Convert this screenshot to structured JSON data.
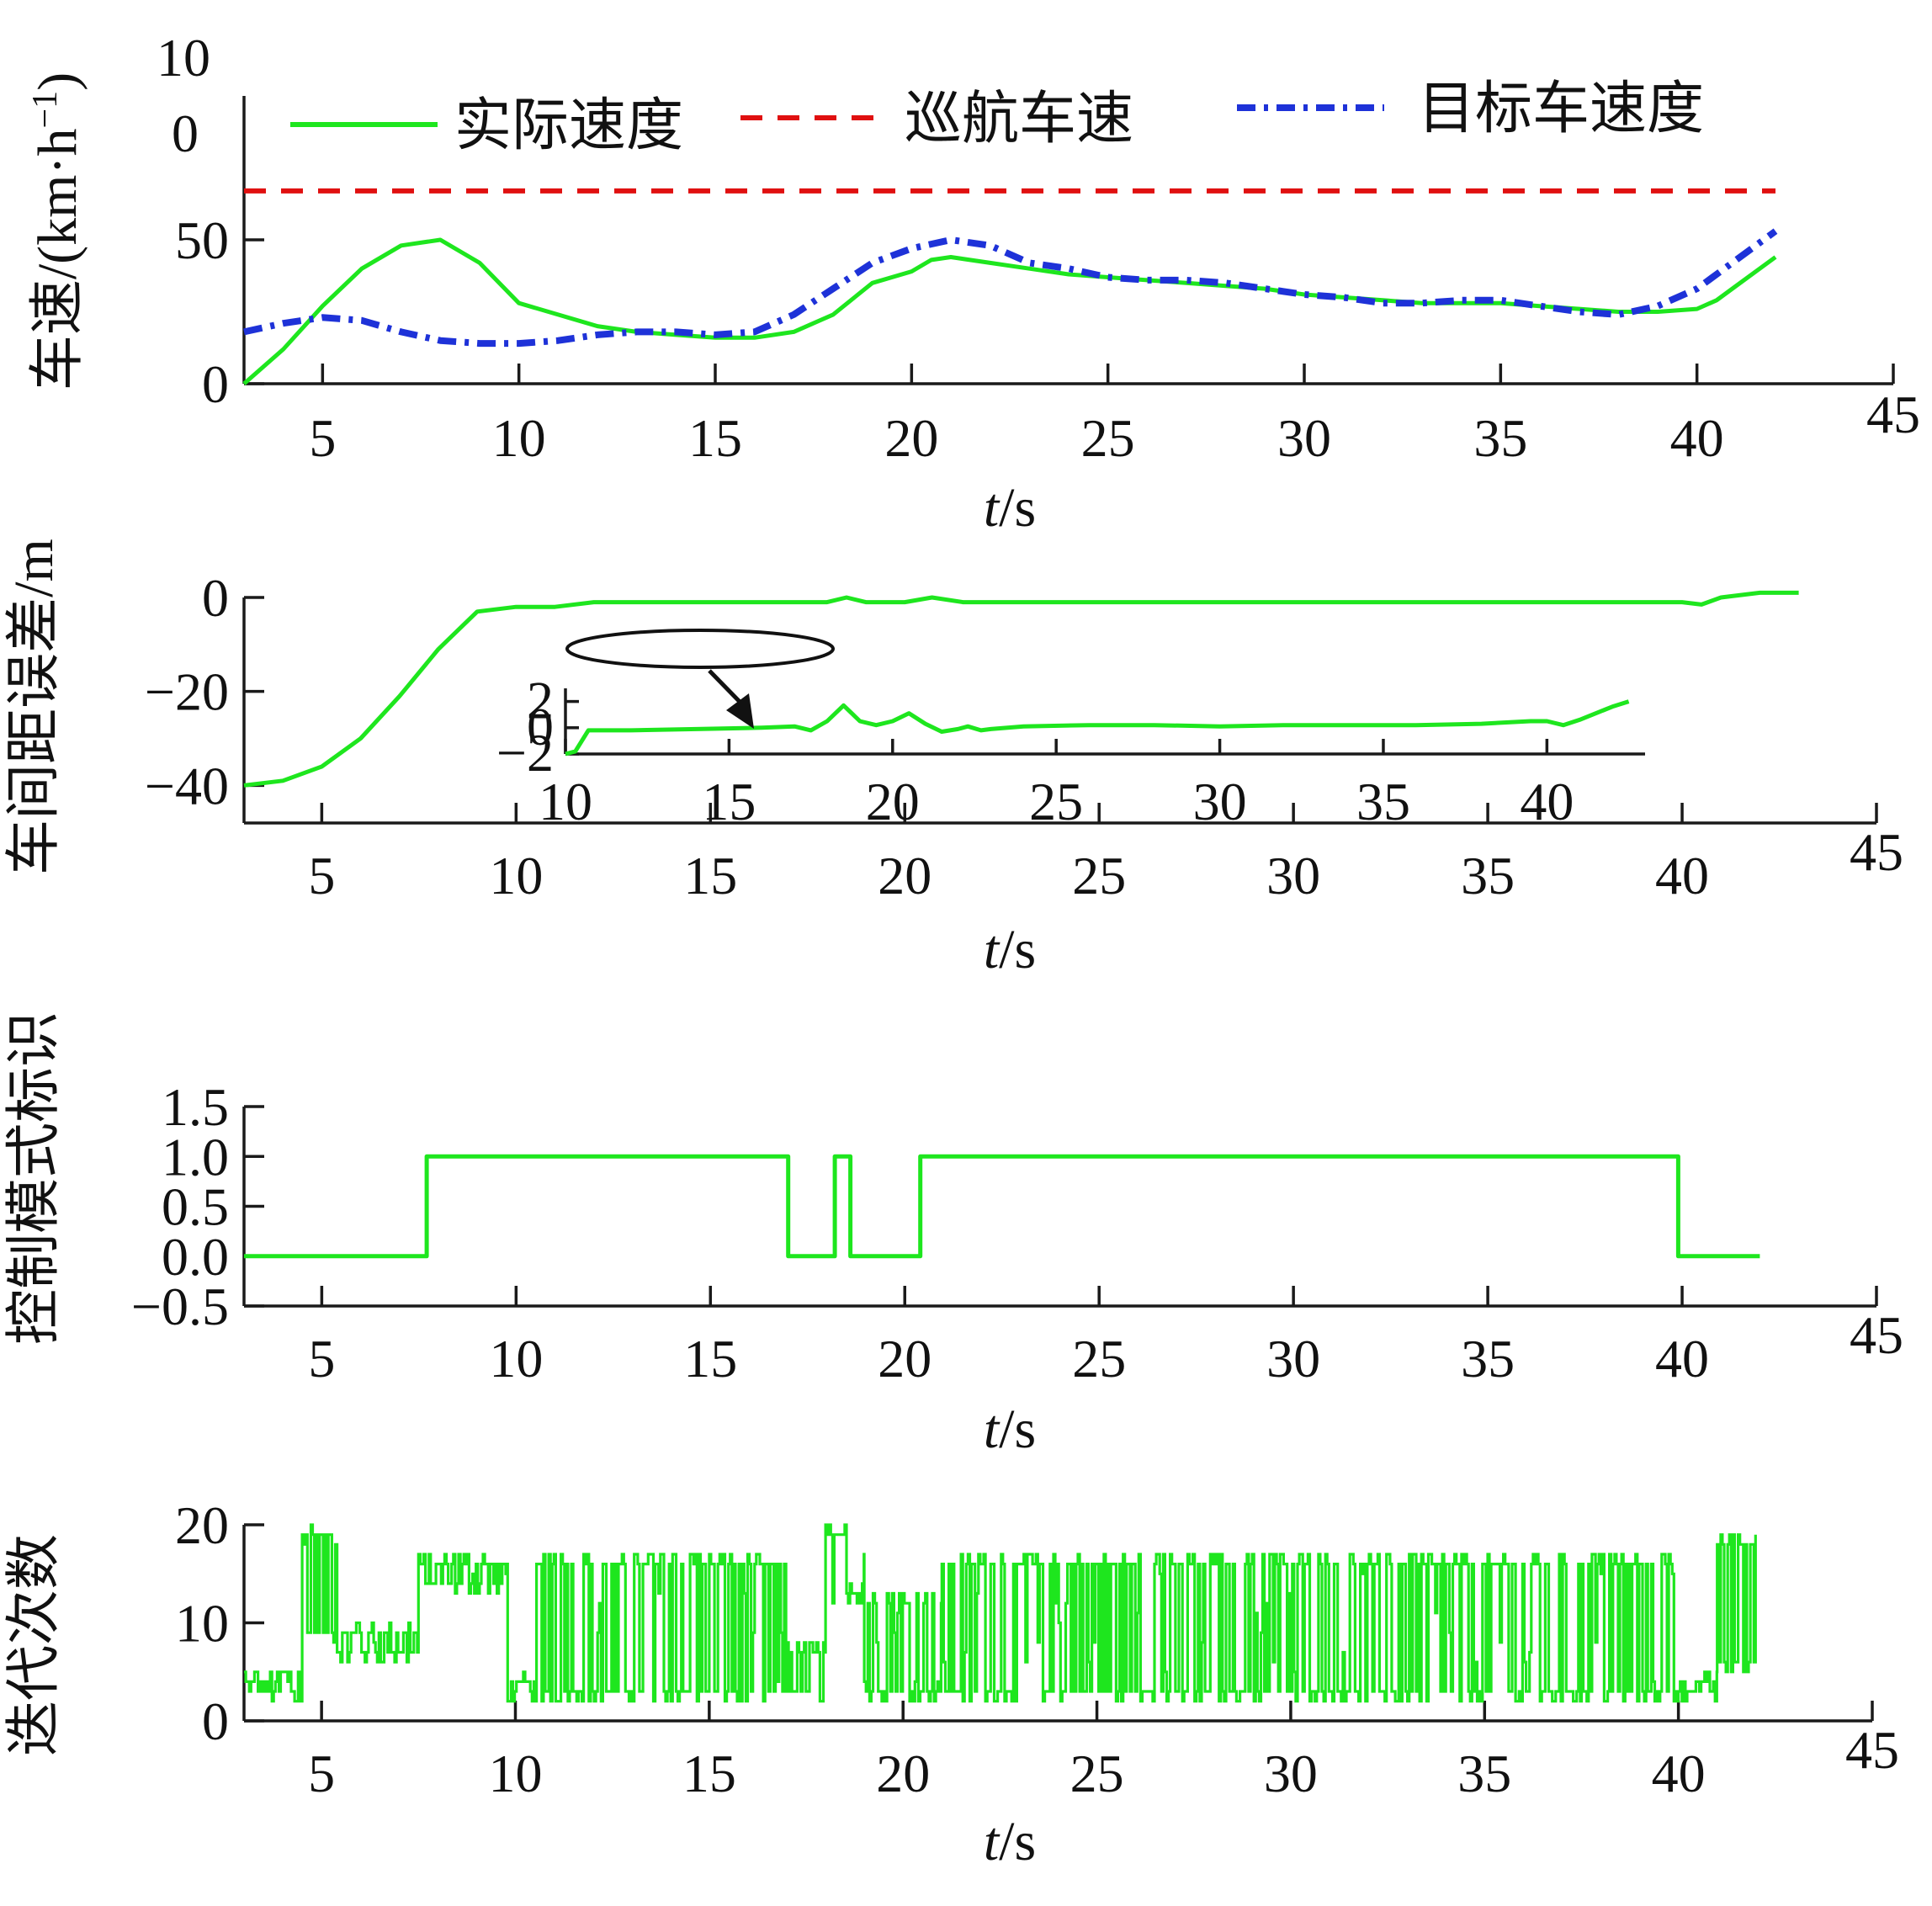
{
  "colors": {
    "actual": "#1ee61e",
    "cruise": "#e01010",
    "target": "#1e32d8",
    "axis": "#1a1a1a"
  },
  "chart_data": [
    {
      "id": "speed",
      "type": "line",
      "xlabel_italic": "t",
      "xlabel_unit": "/s",
      "ylabel": "车速/(km·h",
      "ylabel_sup": "−1",
      "ylabel_tail": ")",
      "xlim": [
        3,
        45
      ],
      "ylim": [
        0,
        100
      ],
      "xticks": [
        5,
        10,
        15,
        20,
        25,
        30,
        35,
        40,
        45
      ],
      "yticks": [
        {
          "v": 0,
          "label": "0"
        },
        {
          "v": 50,
          "label": "50"
        }
      ],
      "ytick_top_label_a": "10",
      "ytick_top_label_b": "0",
      "legend": [
        {
          "label": "实际速度",
          "style": "solid",
          "color": "#1ee61e"
        },
        {
          "label": "巡航车速",
          "style": "dashed",
          "color": "#e01010"
        },
        {
          "label": "目标车速度",
          "style": "dashdot",
          "color": "#1e32d8"
        }
      ],
      "series": [
        {
          "name": "实际速度",
          "style": "solid",
          "color": "#1ee61e",
          "points": [
            [
              3,
              0
            ],
            [
              4,
              12
            ],
            [
              5,
              27
            ],
            [
              6,
              40
            ],
            [
              7,
              48
            ],
            [
              8,
              50
            ],
            [
              9,
              42
            ],
            [
              10,
              28
            ],
            [
              11,
              24
            ],
            [
              12,
              20
            ],
            [
              13,
              18
            ],
            [
              14,
              17
            ],
            [
              15,
              16
            ],
            [
              16,
              16
            ],
            [
              17,
              18
            ],
            [
              18,
              24
            ],
            [
              19,
              35
            ],
            [
              20,
              39
            ],
            [
              20.5,
              43
            ],
            [
              21,
              44
            ],
            [
              22,
              42
            ],
            [
              23,
              40
            ],
            [
              24,
              38
            ],
            [
              25,
              37
            ],
            [
              26,
              36
            ],
            [
              27,
              35
            ],
            [
              28,
              34
            ],
            [
              29,
              33
            ],
            [
              30,
              31
            ],
            [
              31,
              30
            ],
            [
              32,
              29
            ],
            [
              33,
              28
            ],
            [
              34,
              28
            ],
            [
              35,
              28
            ],
            [
              36,
              27
            ],
            [
              37,
              26
            ],
            [
              38,
              25
            ],
            [
              39,
              25
            ],
            [
              40,
              26
            ],
            [
              40.5,
              29
            ],
            [
              41,
              34
            ],
            [
              42,
              44
            ]
          ]
        },
        {
          "name": "巡航车速",
          "style": "dashed",
          "color": "#e01010",
          "points": [
            [
              3,
              67
            ],
            [
              42,
              67
            ]
          ]
        },
        {
          "name": "目标车速度",
          "style": "dashdot",
          "color": "#1e32d8",
          "points": [
            [
              3,
              18
            ],
            [
              4,
              21
            ],
            [
              5,
              23
            ],
            [
              6,
              22
            ],
            [
              7,
              18
            ],
            [
              8,
              15
            ],
            [
              9,
              14
            ],
            [
              10,
              14
            ],
            [
              11,
              15
            ],
            [
              12,
              17
            ],
            [
              13,
              18
            ],
            [
              14,
              18
            ],
            [
              15,
              17
            ],
            [
              16,
              18
            ],
            [
              17,
              24
            ],
            [
              18,
              33
            ],
            [
              19,
              42
            ],
            [
              20,
              47
            ],
            [
              21,
              50
            ],
            [
              22,
              48
            ],
            [
              23,
              42
            ],
            [
              24,
              40
            ],
            [
              25,
              37
            ],
            [
              26,
              36
            ],
            [
              27,
              36
            ],
            [
              28,
              35
            ],
            [
              29,
              33
            ],
            [
              30,
              31
            ],
            [
              31,
              30
            ],
            [
              32,
              28
            ],
            [
              33,
              28
            ],
            [
              34,
              29
            ],
            [
              35,
              29
            ],
            [
              36,
              27
            ],
            [
              37,
              25
            ],
            [
              38,
              24
            ],
            [
              39,
              27
            ],
            [
              40,
              33
            ],
            [
              41,
              43
            ],
            [
              42,
              53
            ]
          ]
        }
      ]
    },
    {
      "id": "gap_error",
      "type": "line",
      "xlabel_italic": "t",
      "xlabel_unit": "/s",
      "ylabel": "车间距误差/m",
      "xlim": [
        3,
        45
      ],
      "ylim": [
        -48,
        0
      ],
      "xticks": [
        5,
        10,
        15,
        20,
        25,
        30,
        35,
        40,
        45
      ],
      "yticks": [
        {
          "v": 0,
          "label": "0"
        },
        {
          "v": -20,
          "label": "−20"
        },
        {
          "v": -40,
          "label": "−40"
        }
      ],
      "series": [
        {
          "name": "",
          "style": "solid",
          "color": "#1ee61e",
          "points": [
            [
              3,
              -40
            ],
            [
              4,
              -39
            ],
            [
              5,
              -36
            ],
            [
              6,
              -30
            ],
            [
              7,
              -21
            ],
            [
              8,
              -11
            ],
            [
              9,
              -3
            ],
            [
              10,
              -2
            ],
            [
              11,
              -2
            ],
            [
              12,
              -1
            ],
            [
              13,
              -1
            ],
            [
              14,
              -1
            ],
            [
              15,
              -1
            ],
            [
              16,
              -1
            ],
            [
              17,
              -1
            ],
            [
              18,
              -1
            ],
            [
              18.5,
              0
            ],
            [
              19,
              -1
            ],
            [
              20,
              -1
            ],
            [
              20.7,
              0
            ],
            [
              21.5,
              -1
            ],
            [
              22,
              -1
            ],
            [
              25,
              -1
            ],
            [
              30,
              -1
            ],
            [
              35,
              -1
            ],
            [
              40,
              -1
            ],
            [
              40.5,
              -1.5
            ],
            [
              41,
              0
            ],
            [
              42,
              1
            ],
            [
              43,
              1
            ]
          ]
        }
      ],
      "inset": {
        "xlim": [
          10,
          43
        ],
        "ylim": [
          -2,
          3
        ],
        "xticks": [
          10,
          15,
          20,
          25,
          30,
          35,
          40
        ],
        "yticks": [
          {
            "v": 2,
            "label": "2"
          },
          {
            "v": 0,
            "label": "0"
          },
          {
            "v": -2,
            "label": "−2"
          }
        ],
        "points": [
          [
            10,
            -2
          ],
          [
            10.3,
            -1.8
          ],
          [
            10.7,
            -0.2
          ],
          [
            12,
            -0.2
          ],
          [
            14,
            -0.1
          ],
          [
            16,
            0
          ],
          [
            17,
            0.1
          ],
          [
            17.5,
            -0.2
          ],
          [
            18,
            0.5
          ],
          [
            18.5,
            1.7
          ],
          [
            19,
            0.5
          ],
          [
            19.5,
            0.2
          ],
          [
            20,
            0.5
          ],
          [
            20.5,
            1.1
          ],
          [
            21,
            0.3
          ],
          [
            21.5,
            -0.3
          ],
          [
            22,
            -0.1
          ],
          [
            22.3,
            0.1
          ],
          [
            22.7,
            -0.2
          ],
          [
            23,
            -0.1
          ],
          [
            24,
            0.1
          ],
          [
            26,
            0.2
          ],
          [
            28,
            0.2
          ],
          [
            30,
            0.1
          ],
          [
            32,
            0.2
          ],
          [
            34,
            0.2
          ],
          [
            36,
            0.2
          ],
          [
            38,
            0.3
          ],
          [
            39.5,
            0.5
          ],
          [
            40,
            0.5
          ],
          [
            40.5,
            0.2
          ],
          [
            41,
            0.6
          ],
          [
            42,
            1.6
          ],
          [
            42.5,
            2
          ]
        ]
      }
    },
    {
      "id": "mode_flag",
      "type": "line",
      "xlabel_italic": "t",
      "xlabel_unit": "/s",
      "ylabel": "控制模式标识",
      "xlim": [
        3,
        45
      ],
      "ylim": [
        -0.5,
        1.5
      ],
      "xticks": [
        5,
        10,
        15,
        20,
        25,
        30,
        35,
        40,
        45
      ],
      "yticks": [
        {
          "v": 1.5,
          "label": "1.5"
        },
        {
          "v": 1.0,
          "label": "1.0"
        },
        {
          "v": 0.5,
          "label": "0.5"
        },
        {
          "v": 0.0,
          "label": "0.0"
        },
        {
          "v": -0.5,
          "label": "−0.5"
        }
      ],
      "series": [
        {
          "name": "",
          "style": "solid",
          "color": "#1ee61e",
          "points": [
            [
              3,
              0
            ],
            [
              7.7,
              0
            ],
            [
              7.7,
              1
            ],
            [
              17,
              1
            ],
            [
              17,
              0
            ],
            [
              18.2,
              0
            ],
            [
              18.2,
              1
            ],
            [
              18.6,
              1
            ],
            [
              18.6,
              0
            ],
            [
              20.4,
              0
            ],
            [
              20.4,
              1
            ],
            [
              39.9,
              1
            ],
            [
              39.9,
              0
            ],
            [
              42,
              0
            ]
          ]
        }
      ]
    },
    {
      "id": "iterations",
      "type": "line",
      "xlabel_italic": "t",
      "xlabel_unit": "/s",
      "ylabel": "迭代次数",
      "xlim": [
        3,
        45
      ],
      "ylim": [
        0,
        20
      ],
      "xticks": [
        5,
        10,
        15,
        20,
        25,
        30,
        35,
        40,
        45
      ],
      "yticks": [
        {
          "v": 0,
          "label": "0"
        },
        {
          "v": 10,
          "label": "10"
        },
        {
          "v": 20,
          "label": "20"
        }
      ],
      "segments": [
        {
          "t0": 3.0,
          "t1": 4.5,
          "kind": "noise",
          "lo": 2,
          "hi": 5
        },
        {
          "t0": 4.5,
          "t1": 5.4,
          "kind": "noise",
          "lo": 8,
          "hi": 20
        },
        {
          "t0": 5.4,
          "t1": 7.5,
          "kind": "noise",
          "lo": 6,
          "hi": 10
        },
        {
          "t0": 7.5,
          "t1": 9.8,
          "kind": "noise",
          "lo": 13,
          "hi": 17
        },
        {
          "t0": 9.8,
          "t1": 10.5,
          "kind": "noise",
          "lo": 2,
          "hi": 5
        },
        {
          "t0": 10.5,
          "t1": 17.0,
          "kind": "noise",
          "lo": 2,
          "hi": 17
        },
        {
          "t0": 17.0,
          "t1": 18.0,
          "kind": "noise",
          "lo": 2,
          "hi": 8
        },
        {
          "t0": 18.0,
          "t1": 19.0,
          "kind": "noise",
          "lo": 12,
          "hi": 20
        },
        {
          "t0": 19.0,
          "t1": 21.0,
          "kind": "noise",
          "lo": 2,
          "hi": 13
        },
        {
          "t0": 21.0,
          "t1": 25.0,
          "kind": "noise",
          "lo": 2,
          "hi": 17
        },
        {
          "t0": 25.0,
          "t1": 37.5,
          "kind": "noise",
          "lo": 2,
          "hi": 17
        },
        {
          "t0": 37.5,
          "t1": 40.0,
          "kind": "noise",
          "lo": 2,
          "hi": 17
        },
        {
          "t0": 40.0,
          "t1": 41.0,
          "kind": "noise",
          "lo": 2,
          "hi": 5
        },
        {
          "t0": 41.0,
          "t1": 42.0,
          "kind": "noise",
          "lo": 5,
          "hi": 19
        }
      ]
    }
  ]
}
